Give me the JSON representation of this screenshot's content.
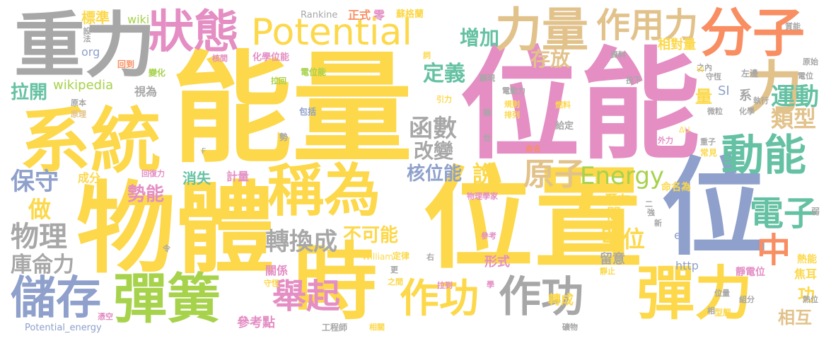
{
  "palette": {
    "yellow": "#fcd84a",
    "pink": "#e48ec4",
    "gray": "#a7a7a7",
    "orange": "#f88e62",
    "green": "#a7d24c",
    "tan": "#e2c28b",
    "blue": "#8ea0cb",
    "teal": "#65c1a3"
  },
  "words": [
    {
      "text": "能量",
      "color": "yellow"
    },
    {
      "text": "位能",
      "color": "pink"
    },
    {
      "text": "位置",
      "color": "yellow"
    },
    {
      "text": "物體",
      "color": "yellow"
    },
    {
      "text": "系統",
      "color": "yellow"
    },
    {
      "text": "位",
      "color": "blue"
    },
    {
      "text": "重力",
      "color": "gray"
    },
    {
      "text": "稱為",
      "color": "yellow"
    },
    {
      "text": "時",
      "color": "yellow"
    },
    {
      "text": "狀態",
      "color": "pink"
    },
    {
      "text": "Potential",
      "color": "yellow"
    },
    {
      "text": "力量",
      "color": "tan"
    },
    {
      "text": "作用力",
      "color": "tan"
    },
    {
      "text": "分子",
      "color": "orange"
    },
    {
      "text": "力",
      "color": "tan"
    },
    {
      "text": "動能",
      "color": "teal"
    },
    {
      "text": "彈簧",
      "color": "green"
    },
    {
      "text": "儲存",
      "color": "blue"
    },
    {
      "text": "彈力",
      "color": "yellow"
    },
    {
      "text": "作功",
      "color": "yellow"
    },
    {
      "text": "作功",
      "color": "gray"
    },
    {
      "text": "舉起",
      "color": "pink"
    },
    {
      "text": "原子",
      "color": "tan"
    },
    {
      "text": "Energy",
      "color": "green"
    },
    {
      "text": "電子",
      "color": "teal"
    },
    {
      "text": "中",
      "color": "orange"
    },
    {
      "text": "運動",
      "color": "teal"
    },
    {
      "text": "類型",
      "color": "tan"
    },
    {
      "text": "增加",
      "color": "teal"
    },
    {
      "text": "函數",
      "color": "gray"
    },
    {
      "text": "改變",
      "color": "gray"
    },
    {
      "text": "定義",
      "color": "teal"
    },
    {
      "text": "存放",
      "color": "tan"
    },
    {
      "text": "轉換成",
      "color": "gray"
    },
    {
      "text": "不可能",
      "color": "yellow"
    },
    {
      "text": "物理",
      "color": "gray"
    },
    {
      "text": "庫侖力",
      "color": "gray"
    },
    {
      "text": "保守",
      "color": "blue"
    },
    {
      "text": "做",
      "color": "yellow"
    },
    {
      "text": "勢能",
      "color": "pink"
    },
    {
      "text": "拉開",
      "color": "teal"
    },
    {
      "text": "核位能",
      "color": "blue"
    },
    {
      "text": "說",
      "color": "yellow"
    },
    {
      "text": "單位",
      "color": "yellow"
    },
    {
      "text": "消失",
      "color": "teal"
    },
    {
      "text": "計量",
      "color": "pink"
    },
    {
      "text": "成分",
      "color": "yellow"
    },
    {
      "text": "wikipedia",
      "color": "green"
    },
    {
      "text": "標準",
      "color": "yellow"
    },
    {
      "text": "wiki",
      "color": "green"
    },
    {
      "text": "org",
      "color": "blue"
    },
    {
      "text": "設法",
      "color": "gray"
    },
    {
      "text": "SI",
      "color": "blue"
    },
    {
      "text": "系",
      "color": "gray"
    },
    {
      "text": "量",
      "color": "yellow"
    },
    {
      "text": "功",
      "color": "yellow"
    },
    {
      "text": "相互",
      "color": "tan"
    },
    {
      "text": "焦耳",
      "color": "yellow"
    },
    {
      "text": "熱能",
      "color": "yellow"
    },
    {
      "text": "靜電位",
      "color": "pink"
    },
    {
      "text": "相對量",
      "color": "yellow"
    },
    {
      "text": "轉成",
      "color": "yellow"
    },
    {
      "text": "參考點",
      "color": "pink"
    },
    {
      "text": "關係",
      "color": "pink"
    },
    {
      "text": "形式",
      "color": "pink"
    },
    {
      "text": "留意",
      "color": "gray"
    },
    {
      "text": "潛在",
      "color": "yellow"
    },
    {
      "text": "命名為",
      "color": "yellow"
    },
    {
      "text": "間",
      "color": "yellow"
    },
    {
      "text": "http",
      "color": "blue"
    },
    {
      "text": "en",
      "color": "blue"
    },
    {
      "text": "Potential_energy",
      "color": "blue"
    },
    {
      "text": "Rankine",
      "color": "gray"
    },
    {
      "text": "正式",
      "color": "orange"
    },
    {
      "text": "零",
      "color": "pink"
    },
    {
      "text": "蘇格蘭",
      "color": "yellow"
    },
    {
      "text": "回到",
      "color": "orange"
    },
    {
      "text": "化學位能",
      "color": "pink"
    },
    {
      "text": "核間",
      "color": "pink"
    },
    {
      "text": "電位能",
      "color": "green"
    },
    {
      "text": "拉回",
      "color": "green"
    },
    {
      "text": "視為",
      "color": "gray"
    },
    {
      "text": "包括",
      "color": "blue"
    },
    {
      "text": "原本",
      "color": "gray"
    },
    {
      "text": "原理",
      "color": "tan"
    },
    {
      "text": "變化",
      "color": "green"
    },
    {
      "text": "William",
      "color": "yellow"
    },
    {
      "text": "定律",
      "color": "yellow"
    },
    {
      "text": "守恆",
      "color": "yellow"
    },
    {
      "text": "工程師",
      "color": "gray"
    },
    {
      "text": "相關",
      "color": "yellow"
    },
    {
      "text": "回復力",
      "color": "pink"
    },
    {
      "text": "憑空",
      "color": "pink"
    },
    {
      "text": "資料",
      "color": "gray"
    },
    {
      "text": "質能",
      "color": "gray"
    },
    {
      "text": "原始",
      "color": "gray"
    },
    {
      "text": "電位",
      "color": "gray"
    },
    {
      "text": "左邊",
      "color": "gray"
    },
    {
      "text": "執行",
      "color": "gray"
    },
    {
      "text": "化學",
      "color": "gray"
    },
    {
      "text": "重子",
      "color": "gray"
    },
    {
      "text": "常見",
      "color": "yellow"
    },
    {
      "text": "外力",
      "color": "pink"
    },
    {
      "text": "微粒",
      "color": "gray"
    },
    {
      "text": "ΔU",
      "color": "yellow"
    },
    {
      "text": "強",
      "color": "gray"
    },
    {
      "text": "新",
      "color": "gray"
    },
    {
      "text": "弱",
      "color": "gray"
    },
    {
      "text": "組分",
      "color": "gray"
    },
    {
      "text": "熱位",
      "color": "gray"
    },
    {
      "text": "型態",
      "color": "yellow"
    },
    {
      "text": "位量",
      "color": "gray"
    },
    {
      "text": "相",
      "color": "gray"
    },
    {
      "text": "礦物",
      "color": "gray"
    },
    {
      "text": "靜止",
      "color": "yellow"
    },
    {
      "text": "參考",
      "color": "pink"
    },
    {
      "text": "物理學家",
      "color": "pink"
    },
    {
      "text": "命名",
      "color": "orange"
    },
    {
      "text": "給定",
      "color": "gray"
    },
    {
      "text": "燃料",
      "color": "yellow"
    },
    {
      "text": "電動力",
      "color": "gray"
    },
    {
      "text": "規則",
      "color": "yellow"
    },
    {
      "text": "排列",
      "color": "yellow"
    },
    {
      "text": "引力",
      "color": "yellow"
    },
    {
      "text": "稱",
      "color": "gray"
    },
    {
      "text": "世",
      "color": "gray"
    },
    {
      "text": "投下",
      "color": "gray"
    },
    {
      "text": "顯現",
      "color": "gray"
    },
    {
      "text": "詞",
      "color": "yellow"
    },
    {
      "text": "之內",
      "color": "gray"
    },
    {
      "text": "守恆",
      "color": "gray"
    },
    {
      "text": "勢",
      "color": "gray"
    },
    {
      "text": "令",
      "color": "gray"
    },
    {
      "text": "之間",
      "color": "yellow"
    },
    {
      "text": "右",
      "color": "gray"
    },
    {
      "text": "更",
      "color": "gray"
    },
    {
      "text": "學",
      "color": "pink"
    },
    {
      "text": "拉到",
      "color": "pink"
    },
    {
      "text": "F",
      "color": "gray"
    },
    {
      "text": "W",
      "color": "yellow"
    },
    {
      "text": "U",
      "color": "blue"
    },
    {
      "text": "二",
      "color": "gray"
    }
  ]
}
